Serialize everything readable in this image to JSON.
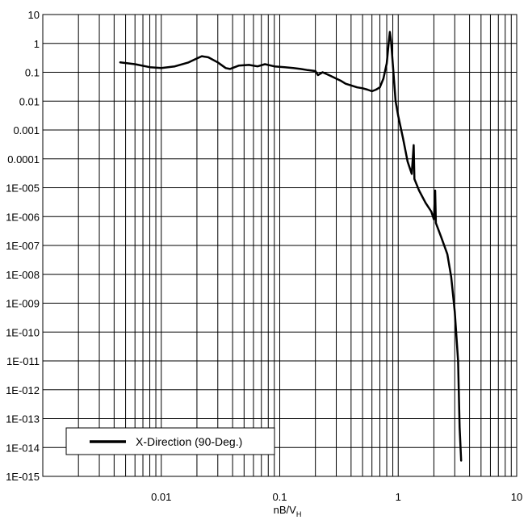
{
  "chart_data": {
    "type": "line",
    "xscale": "log",
    "yscale": "log",
    "xlim": [
      0.001,
      10
    ],
    "ylim": [
      1e-15,
      10
    ],
    "grid": true,
    "legend_position": "bottom-left",
    "xlabel": {
      "base": "nB/V",
      "sub": "H"
    },
    "ylabel": "",
    "title": "",
    "x_ticks": [
      {
        "value": 0.01,
        "label": "0.01"
      },
      {
        "value": 0.1,
        "label": "0.1"
      },
      {
        "value": 1,
        "label": "1"
      },
      {
        "value": 10,
        "label": "10"
      }
    ],
    "y_ticks": [
      {
        "value": 10,
        "label": "10"
      },
      {
        "value": 1,
        "label": "1"
      },
      {
        "value": 0.1,
        "label": "0.1"
      },
      {
        "value": 0.01,
        "label": "0.01"
      },
      {
        "value": 0.001,
        "label": "0.001"
      },
      {
        "value": 0.0001,
        "label": "0.0001"
      },
      {
        "value": 1e-05,
        "label": "1E-005"
      },
      {
        "value": 1e-06,
        "label": "1E-006"
      },
      {
        "value": 1e-07,
        "label": "1E-007"
      },
      {
        "value": 1e-08,
        "label": "1E-008"
      },
      {
        "value": 1e-09,
        "label": "1E-009"
      },
      {
        "value": 1e-10,
        "label": "1E-010"
      },
      {
        "value": 1e-11,
        "label": "1E-011"
      },
      {
        "value": 1e-12,
        "label": "1E-012"
      },
      {
        "value": 1e-13,
        "label": "1E-013"
      },
      {
        "value": 1e-14,
        "label": "1E-014"
      },
      {
        "value": 1e-15,
        "label": "1E-015"
      }
    ],
    "series": [
      {
        "name": "X-Direction (90-Deg.)",
        "color": "#000000",
        "points": [
          [
            0.0045,
            0.22
          ],
          [
            0.006,
            0.19
          ],
          [
            0.008,
            0.15
          ],
          [
            0.01,
            0.14
          ],
          [
            0.013,
            0.16
          ],
          [
            0.017,
            0.22
          ],
          [
            0.02,
            0.3
          ],
          [
            0.022,
            0.36
          ],
          [
            0.025,
            0.33
          ],
          [
            0.03,
            0.22
          ],
          [
            0.035,
            0.14
          ],
          [
            0.038,
            0.13
          ],
          [
            0.045,
            0.17
          ],
          [
            0.055,
            0.18
          ],
          [
            0.065,
            0.16
          ],
          [
            0.075,
            0.19
          ],
          [
            0.09,
            0.16
          ],
          [
            0.11,
            0.15
          ],
          [
            0.13,
            0.14
          ],
          [
            0.15,
            0.13
          ],
          [
            0.17,
            0.12
          ],
          [
            0.2,
            0.11
          ],
          [
            0.21,
            0.08
          ],
          [
            0.23,
            0.1
          ],
          [
            0.26,
            0.08
          ],
          [
            0.3,
            0.06
          ],
          [
            0.33,
            0.05
          ],
          [
            0.36,
            0.04
          ],
          [
            0.4,
            0.035
          ],
          [
            0.45,
            0.03
          ],
          [
            0.5,
            0.028
          ],
          [
            0.55,
            0.025
          ],
          [
            0.6,
            0.022
          ],
          [
            0.65,
            0.025
          ],
          [
            0.7,
            0.03
          ],
          [
            0.75,
            0.06
          ],
          [
            0.8,
            0.2
          ],
          [
            0.83,
            1.0
          ],
          [
            0.85,
            2.5
          ],
          [
            0.87,
            1.2
          ],
          [
            0.9,
            0.2
          ],
          [
            0.95,
            0.01
          ],
          [
            1.0,
            0.003
          ],
          [
            1.1,
            0.0005
          ],
          [
            1.2,
            8e-05
          ],
          [
            1.3,
            3e-05
          ],
          [
            1.35,
            0.0003
          ],
          [
            1.37,
            2e-05
          ],
          [
            1.5,
            8e-06
          ],
          [
            1.7,
            3e-06
          ],
          [
            1.9,
            1.5e-06
          ],
          [
            2.0,
            8e-07
          ],
          [
            2.05,
            8e-06
          ],
          [
            2.08,
            6e-07
          ],
          [
            2.3,
            2e-07
          ],
          [
            2.6,
            5e-08
          ],
          [
            2.8,
            8e-09
          ],
          [
            3.0,
            5e-10
          ],
          [
            3.2,
            1e-11
          ],
          [
            3.3,
            5e-14
          ],
          [
            3.4,
            3.5e-15
          ]
        ]
      }
    ]
  }
}
